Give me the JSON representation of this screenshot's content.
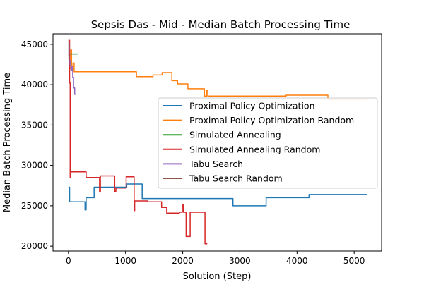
{
  "chart_data": {
    "type": "line",
    "title": "Sepsis Das - Mid - Median Batch Processing Time",
    "xlabel": "Solution (Step)",
    "ylabel": "Median Batch Processing Time",
    "xlim": [
      -270,
      5480
    ],
    "ylim": [
      19400,
      46300
    ],
    "x_ticks": [
      0,
      1000,
      2000,
      3000,
      4000,
      5000
    ],
    "y_ticks": [
      20000,
      25000,
      30000,
      35000,
      40000,
      45000
    ],
    "x_tick_labels": [
      "0",
      "1000",
      "2000",
      "3000",
      "4000",
      "5000"
    ],
    "y_tick_labels": [
      "20000",
      "25000",
      "30000",
      "35000",
      "40000",
      "45000"
    ],
    "grid": false,
    "legend_position": "center-right",
    "series": [
      {
        "name": "Proximal Policy Optimization",
        "color": "#1f77b4",
        "step": true,
        "points": [
          [
            0,
            27300
          ],
          [
            20,
            25500
          ],
          [
            270,
            25500
          ],
          [
            290,
            24500
          ],
          [
            310,
            26000
          ],
          [
            430,
            26000
          ],
          [
            450,
            27300
          ],
          [
            1000,
            27300
          ],
          [
            1020,
            27700
          ],
          [
            1270,
            27700
          ],
          [
            1290,
            25900
          ],
          [
            2870,
            25900
          ],
          [
            2880,
            25000
          ],
          [
            3450,
            25000
          ],
          [
            3460,
            26000
          ],
          [
            4200,
            26000
          ],
          [
            4210,
            26400
          ],
          [
            5220,
            26400
          ]
        ]
      },
      {
        "name": "Proximal Policy Optimization Random",
        "color": "#ff7f0e",
        "step": true,
        "points": [
          [
            0,
            45500
          ],
          [
            15,
            42000
          ],
          [
            40,
            44300
          ],
          [
            55,
            41800
          ],
          [
            80,
            42700
          ],
          [
            100,
            41600
          ],
          [
            1170,
            41600
          ],
          [
            1190,
            41000
          ],
          [
            1470,
            41000
          ],
          [
            1480,
            41200
          ],
          [
            1620,
            41200
          ],
          [
            1640,
            41500
          ],
          [
            1800,
            41500
          ],
          [
            1810,
            40500
          ],
          [
            1900,
            40500
          ],
          [
            1910,
            40100
          ],
          [
            2080,
            40100
          ],
          [
            2090,
            39500
          ],
          [
            2360,
            39500
          ],
          [
            2380,
            38600
          ],
          [
            2420,
            39300
          ],
          [
            2440,
            38600
          ],
          [
            3800,
            38600
          ],
          [
            3810,
            38700
          ],
          [
            4530,
            38700
          ],
          [
            4540,
            38200
          ],
          [
            5220,
            38200
          ]
        ]
      },
      {
        "name": "Simulated Annealing",
        "color": "#2ca02c",
        "step": true,
        "points": [
          [
            0,
            45300
          ],
          [
            10,
            43800
          ],
          [
            170,
            43800
          ]
        ]
      },
      {
        "name": "Simulated Annealing Random",
        "color": "#d62728",
        "step": true,
        "points": [
          [
            0,
            45500
          ],
          [
            20,
            40200
          ],
          [
            30,
            28500
          ],
          [
            40,
            29200
          ],
          [
            300,
            29200
          ],
          [
            310,
            28500
          ],
          [
            540,
            28500
          ],
          [
            545,
            26700
          ],
          [
            560,
            28700
          ],
          [
            800,
            28700
          ],
          [
            810,
            26800
          ],
          [
            830,
            27200
          ],
          [
            1000,
            27200
          ],
          [
            1010,
            28600
          ],
          [
            1140,
            28600
          ],
          [
            1150,
            24400
          ],
          [
            1160,
            25600
          ],
          [
            1380,
            25600
          ],
          [
            1390,
            25500
          ],
          [
            1620,
            25500
          ],
          [
            1630,
            24800
          ],
          [
            1710,
            24800
          ],
          [
            1720,
            24100
          ],
          [
            1930,
            24100
          ],
          [
            1940,
            24200
          ],
          [
            1990,
            25100
          ],
          [
            2010,
            24200
          ],
          [
            2050,
            24200
          ],
          [
            2060,
            21200
          ],
          [
            2120,
            21200
          ],
          [
            2130,
            24200
          ],
          [
            2380,
            24200
          ],
          [
            2390,
            20300
          ],
          [
            2430,
            20300
          ]
        ]
      },
      {
        "name": "Tabu Search",
        "color": "#9467bd",
        "step": true,
        "points": [
          [
            0,
            45300
          ],
          [
            10,
            43000
          ],
          [
            30,
            42400
          ],
          [
            45,
            41800
          ],
          [
            60,
            42300
          ],
          [
            75,
            40900
          ],
          [
            90,
            39600
          ],
          [
            110,
            38800
          ],
          [
            130,
            38800
          ]
        ]
      },
      {
        "name": "Tabu Search Random",
        "color": "#8c564b",
        "step": true,
        "points": [
          [
            0,
            43800
          ],
          [
            10,
            43600
          ]
        ]
      }
    ]
  }
}
